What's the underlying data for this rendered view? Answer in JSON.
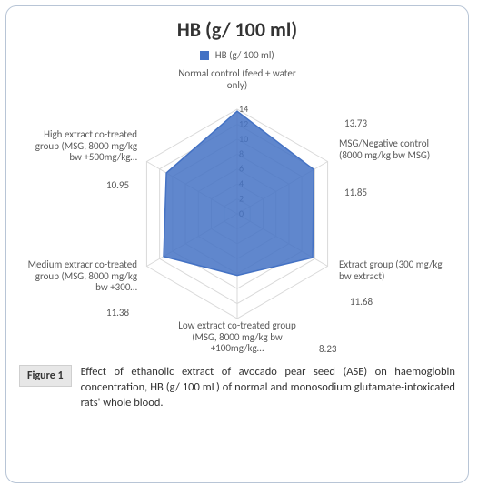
{
  "chart": {
    "type": "radar",
    "title": "HB (g/ 100 ml)",
    "legend_label": "HB (g/ 100 ml)",
    "series_color": "#4472c4",
    "series_fill_opacity": 0.85,
    "grid_color": "#d9d9d9",
    "axis_line_color": "#d9d9d9",
    "tick_text_color": "#595959",
    "background_color": "#ffffff",
    "axis_max": 14,
    "axis_min": 0,
    "tick_step": 2,
    "ticks": [
      0,
      2,
      4,
      6,
      8,
      10,
      12,
      14
    ],
    "axes": [
      {
        "label": "Normal control (feed + water only)",
        "value": 13.73
      },
      {
        "label": "MSG/Negative control (8000 mg/kg bw MSG)",
        "value": 11.85
      },
      {
        "label": "Extract group (300 mg/kg bw extract)",
        "value": 11.68
      },
      {
        "label": "Low extract co-treated group (MSG, 8000 mg/kg bw +100mg/kg…",
        "value": 8.23
      },
      {
        "label": "Medium extracr co-treated group (MSG, 8000 mg/kg bw +300…",
        "value": 11.38
      },
      {
        "label": "High extract co-treated group (MSG, 8000 mg/kg bw +500mg/kg…",
        "value": 10.95
      }
    ]
  },
  "caption": {
    "figure_label": "Figure 1",
    "text": "Effect of ethanolic extract of avocado pear seed (ASE) on haemoglobin concentration, HB (g/ 100 mL) of normal and monosodium glutamate-intoxicated rats' whole blood."
  }
}
